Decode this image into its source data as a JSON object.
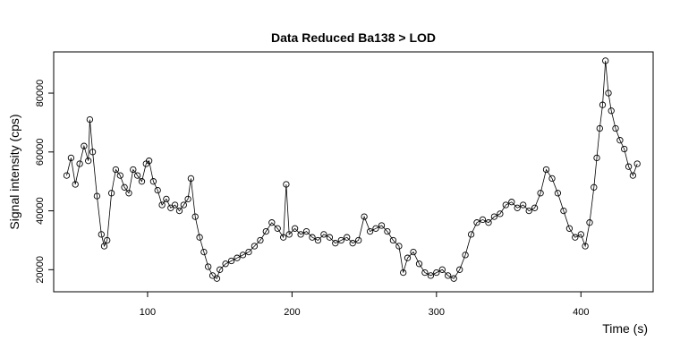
{
  "chart_data": {
    "type": "scatter",
    "title": "Data Reduced Ba138 > LOD",
    "xlabel": "Time (s)",
    "ylabel": "Signal intensity (cps)",
    "xlim": [
      35,
      450
    ],
    "ylim": [
      12500,
      94000
    ],
    "xticks": [
      100,
      200,
      300,
      400
    ],
    "yticks": [
      20000,
      40000,
      60000,
      80000
    ],
    "marker": "open-circle",
    "connected": true,
    "grid": false,
    "legend": "none",
    "series": [
      {
        "x": [
          44,
          47,
          50,
          53,
          56,
          59,
          60,
          62,
          65,
          68,
          70,
          72,
          75,
          78,
          81,
          84,
          87,
          90,
          93,
          96,
          99,
          101,
          104,
          107,
          110,
          113,
          116,
          119,
          122,
          125,
          128,
          130,
          133,
          136,
          139,
          142,
          145,
          148,
          150,
          154,
          158,
          162,
          166,
          170,
          174,
          178,
          182,
          186,
          190,
          194,
          196,
          198,
          202,
          206,
          210,
          214,
          218,
          222,
          226,
          230,
          234,
          238,
          242,
          246,
          250,
          254,
          258,
          262,
          266,
          270,
          274,
          277,
          280,
          284,
          288,
          292,
          296,
          300,
          304,
          308,
          312,
          316,
          320,
          324,
          328,
          332,
          336,
          340,
          344,
          348,
          352,
          356,
          360,
          364,
          368,
          372,
          376,
          380,
          384,
          388,
          392,
          396,
          400,
          403,
          406,
          409,
          411,
          413,
          415,
          417,
          419,
          421,
          424,
          427,
          430,
          433,
          436,
          439
        ],
        "y": [
          52000,
          58000,
          49000,
          56000,
          62000,
          57000,
          71000,
          60000,
          45000,
          32000,
          28000,
          30000,
          46000,
          54000,
          52000,
          48000,
          46000,
          54000,
          52000,
          50000,
          56000,
          57000,
          50000,
          47000,
          42000,
          44000,
          41000,
          42000,
          40000,
          42000,
          44000,
          51000,
          38000,
          31000,
          26000,
          21000,
          18000,
          17000,
          20000,
          22000,
          23000,
          24000,
          25000,
          26000,
          28000,
          30000,
          33000,
          36000,
          34000,
          31000,
          49000,
          32000,
          34000,
          32000,
          33000,
          31000,
          30000,
          32000,
          31000,
          29000,
          30000,
          31000,
          29000,
          30000,
          38000,
          33000,
          34000,
          35000,
          33000,
          30000,
          28000,
          19000,
          24000,
          26000,
          22000,
          19000,
          18000,
          19000,
          20000,
          18000,
          17000,
          20000,
          25000,
          32000,
          36000,
          37000,
          36000,
          38000,
          39000,
          42000,
          43000,
          41000,
          42000,
          40000,
          41000,
          46000,
          54000,
          51000,
          46000,
          40000,
          34000,
          31000,
          32000,
          28000,
          36000,
          48000,
          58000,
          68000,
          76000,
          91000,
          80000,
          74000,
          68000,
          64000,
          61000,
          55000,
          52000,
          56000
        ]
      }
    ]
  }
}
